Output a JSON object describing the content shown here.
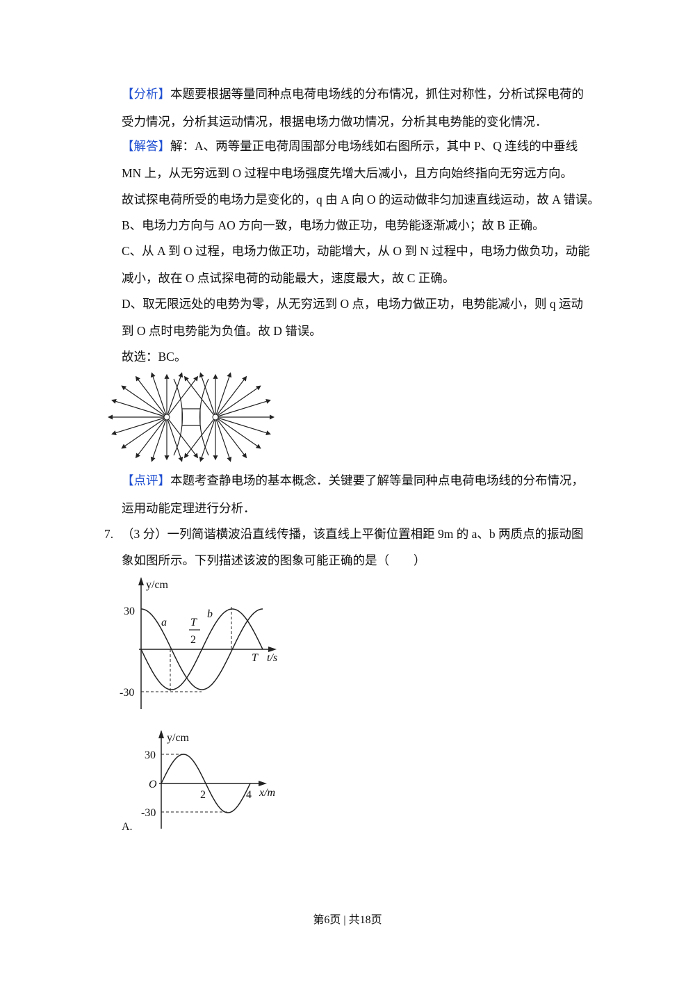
{
  "tag_open": "【",
  "tag_close": "】",
  "analysis": {
    "tag": "分析",
    "lines": [
      "本题要根据等量同种点电荷电场线的分布情况，抓住对称性，分析试探电荷的",
      "受力情况，分析其运动情况，根据电场力做功情况，分析其电势能的变化情况．"
    ]
  },
  "answer": {
    "tag": "解答",
    "lines": [
      "解：A、两等量正电荷周围部分电场线如右图所示，其中 P、Q 连线的中垂线",
      "MN 上，从无穷远到 O 过程中电场强度先增大后减小，且方向始终指向无穷远方向。",
      "故试探电荷所受的电场力是变化的，q 由 A 向 O 的运动做非匀加速直线运动，故 A 错误。",
      "B、电场力方向与 AO 方向一致，电场力做正功，电势能逐渐减小；故 B 正确。",
      "C、从 A 到 O 过程，电场力做正功，动能增大，从 O 到 N 过程中，电场力做负功，动能",
      "减小，故在 O 点试探电荷的动能最大，速度最大，故 C 正确。",
      "D、取无限远处的电势为零，从无穷远到 O 点，电场力做正功，电势能减小，则 q 运动",
      "到 O 点时电势能为负值。故 D 错误。",
      "故选：BC。"
    ]
  },
  "comment": {
    "tag": "点评",
    "lines": [
      "本题考查静电场的基本概念．关键要了解等量同种点电荷电场线的分布情况，",
      "运用动能定理进行分析．"
    ]
  },
  "question": {
    "number": "7.",
    "lines": [
      "（3 分）一列简谐横波沿直线传播，该直线上平衡位置相距 9m 的 a、b 两质点的振动图",
      "象如图所示。下列描述该波的图象可能正确的是（　　）"
    ]
  },
  "figure_vibration": {
    "y_label": "y/cm",
    "y_max": "30",
    "y_min": "-30",
    "t_label": "t/s",
    "period": "T",
    "half_num": "T",
    "half_den": "2",
    "curve_a": "a",
    "curve_b": "b"
  },
  "figure_wave": {
    "y_label": "y/cm",
    "y_max": "30",
    "y_min": "-30",
    "origin": "O",
    "x_label": "x/m",
    "x_mid": "2",
    "x_end": "4",
    "option": "A."
  },
  "footer": {
    "page": "第6页",
    "separator": "|",
    "total": "共18页"
  }
}
